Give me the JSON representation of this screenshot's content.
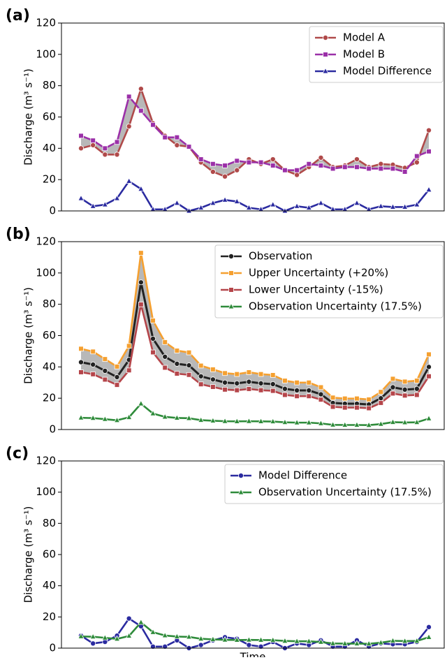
{
  "chart_data": [
    {
      "type": "line",
      "title": "(a)",
      "ylabel": "Discharge (m³ s⁻¹)",
      "ylim": [
        0,
        120
      ],
      "yticks": [
        0,
        20,
        40,
        60,
        80,
        100,
        120
      ],
      "legend": "upper right",
      "fill_between": {
        "series": [
          0,
          1
        ],
        "color": "#ababab"
      },
      "series": [
        {
          "name": "Model A",
          "color": "#b04a4a",
          "marker": "circle",
          "values": [
            40,
            42,
            36,
            36,
            54,
            78,
            56,
            48,
            42,
            41,
            31,
            25,
            22,
            26,
            33,
            30,
            33,
            26,
            23,
            28,
            34,
            28,
            29,
            33,
            28,
            30,
            29.5,
            27.5,
            31,
            51.5
          ]
        },
        {
          "name": "Model B",
          "color": "#9b30a8",
          "marker": "square",
          "values": [
            48,
            45,
            40,
            44,
            73,
            64,
            55,
            47,
            47,
            41,
            33,
            30,
            29,
            32,
            31,
            31,
            29,
            26,
            26,
            30,
            29,
            27,
            28,
            28,
            27,
            27,
            27,
            25,
            35,
            38
          ]
        },
        {
          "name": "Model Difference",
          "color": "#2b2ba0",
          "marker": "triangle",
          "values": [
            8,
            3,
            4,
            8,
            19,
            14,
            1,
            1,
            5,
            0,
            2,
            5,
            7,
            6,
            2,
            1,
            4,
            0,
            3,
            2,
            5,
            1,
            1,
            5,
            1,
            3,
            2.5,
            2.5,
            4,
            13.5
          ]
        }
      ]
    },
    {
      "type": "line",
      "title": "(b)",
      "ylabel": "Discharge (m³ s⁻¹)",
      "ylim": [
        0,
        120
      ],
      "yticks": [
        0,
        20,
        40,
        60,
        80,
        100,
        120
      ],
      "legend": "upper right",
      "fill_between": {
        "series": [
          1,
          2
        ],
        "color": "#ababab"
      },
      "series": [
        {
          "name": "Observation",
          "color": "#222222",
          "marker": "circle",
          "values": [
            43,
            41.5,
            37.5,
            33.5,
            44.5,
            94,
            58,
            46.5,
            42,
            41,
            34,
            32,
            30,
            29.5,
            30.5,
            29.5,
            29,
            26,
            25,
            25,
            22.5,
            17,
            16.5,
            16.5,
            16,
            20,
            27,
            25.5,
            26,
            40
          ]
        },
        {
          "name": "Upper Uncertainty (+20%)",
          "color": "#f5a030",
          "marker": "square",
          "values": [
            51.6,
            49.8,
            45,
            40.2,
            53.4,
            112.8,
            69.6,
            55.8,
            50.4,
            49.2,
            40.8,
            38.4,
            36,
            35.4,
            36.6,
            35.4,
            34.8,
            31.2,
            30,
            30,
            27,
            20.4,
            19.8,
            19.8,
            19.2,
            24,
            32.4,
            30.6,
            31.2,
            48
          ]
        },
        {
          "name": "Lower Uncertainty (-15%)",
          "color": "#b5454a",
          "marker": "square",
          "values": [
            36.6,
            35.3,
            31.9,
            28.5,
            37.8,
            79.9,
            49.3,
            39.5,
            35.7,
            34.9,
            28.9,
            27.2,
            25.5,
            25.1,
            25.9,
            25.1,
            24.7,
            22.1,
            21.3,
            21.3,
            19.1,
            14.5,
            14,
            14,
            13.6,
            17,
            23,
            21.7,
            22.1,
            34
          ]
        },
        {
          "name": "Observation Uncertainty (17.5%)",
          "color": "#2e8b3a",
          "marker": "triangle",
          "values": [
            7.5,
            7.3,
            6.6,
            5.9,
            7.8,
            16.5,
            10.2,
            8.1,
            7.4,
            7.2,
            6,
            5.6,
            5.3,
            5.2,
            5.3,
            5.2,
            5.1,
            4.6,
            4.4,
            4.4,
            3.9,
            3,
            2.9,
            2.9,
            2.8,
            3.5,
            4.7,
            4.5,
            4.6,
            7
          ]
        }
      ]
    },
    {
      "type": "line",
      "title": "(c)",
      "ylabel": "Discharge (m³ s⁻¹)",
      "xlabel": "Time",
      "ylim": [
        0,
        120
      ],
      "yticks": [
        0,
        20,
        40,
        60,
        80,
        100,
        120
      ],
      "legend": "upper right",
      "series": [
        {
          "name": "Model Difference",
          "color": "#2b2ba0",
          "marker": "circle",
          "values": [
            8,
            3,
            4,
            8,
            19,
            14,
            1,
            1,
            5,
            0,
            2,
            5,
            7,
            6,
            2,
            1,
            4,
            0,
            3,
            2,
            5,
            1,
            1,
            5,
            1,
            3,
            2.5,
            2.5,
            4,
            13.5
          ]
        },
        {
          "name": "Observation Uncertainty (17.5%)",
          "color": "#2e8b3a",
          "marker": "triangle",
          "values": [
            7.5,
            7.3,
            6.6,
            5.9,
            7.8,
            16.5,
            10.2,
            8.1,
            7.4,
            7.2,
            6,
            5.6,
            5.3,
            5.2,
            5.3,
            5.2,
            5.1,
            4.6,
            4.4,
            4.4,
            3.9,
            3,
            2.9,
            2.9,
            2.8,
            3.5,
            4.7,
            4.5,
            4.6,
            7
          ]
        }
      ]
    }
  ]
}
